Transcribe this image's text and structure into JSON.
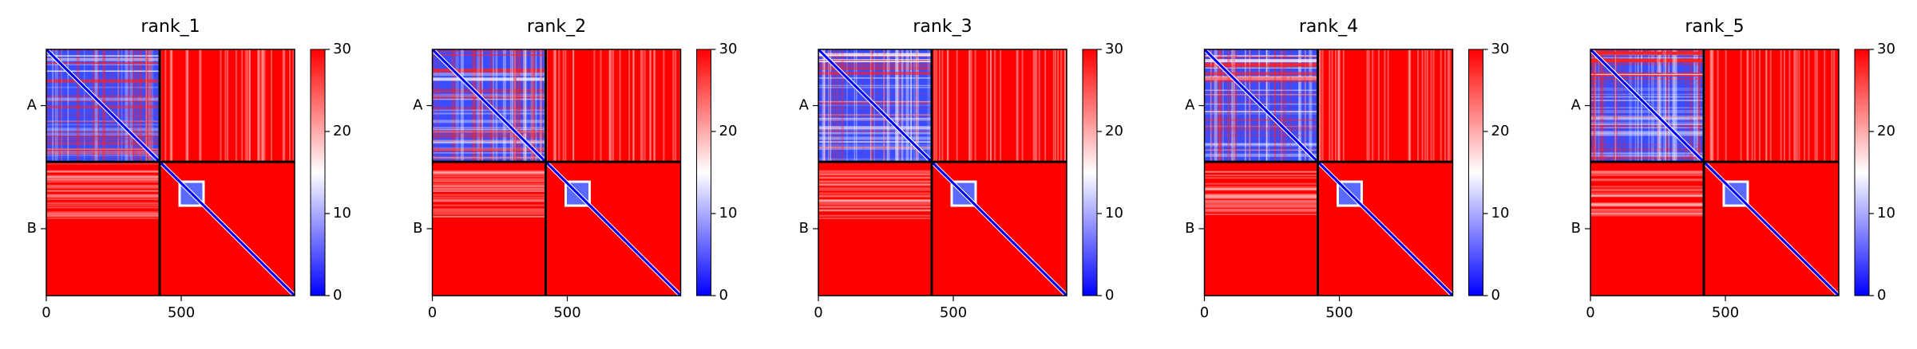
{
  "chart_data": [
    {
      "type": "heatmap",
      "title": "rank_1",
      "categories": [
        "A",
        "B"
      ],
      "chain_boundary": 420,
      "xlim": [
        0,
        920
      ],
      "xticks": [
        0,
        500
      ],
      "ylim": [
        920,
        0
      ],
      "clim": [
        0,
        30
      ],
      "cticks": [
        0,
        10,
        20,
        30
      ],
      "colors": [
        "#0000ff",
        "#ffffff",
        "#ff0000"
      ]
    },
    {
      "type": "heatmap",
      "title": "rank_2",
      "categories": [
        "A",
        "B"
      ],
      "chain_boundary": 420,
      "xlim": [
        0,
        920
      ],
      "xticks": [
        0,
        500
      ],
      "ylim": [
        920,
        0
      ],
      "clim": [
        0,
        30
      ],
      "cticks": [
        0,
        10,
        20,
        30
      ],
      "colors": [
        "#0000ff",
        "#ffffff",
        "#ff0000"
      ]
    },
    {
      "type": "heatmap",
      "title": "rank_3",
      "categories": [
        "A",
        "B"
      ],
      "chain_boundary": 420,
      "xlim": [
        0,
        920
      ],
      "xticks": [
        0,
        500
      ],
      "ylim": [
        920,
        0
      ],
      "clim": [
        0,
        30
      ],
      "cticks": [
        0,
        10,
        20,
        30
      ],
      "colors": [
        "#0000ff",
        "#ffffff",
        "#ff0000"
      ]
    },
    {
      "type": "heatmap",
      "title": "rank_4",
      "categories": [
        "A",
        "B"
      ],
      "chain_boundary": 420,
      "xlim": [
        0,
        920
      ],
      "xticks": [
        0,
        500
      ],
      "ylim": [
        920,
        0
      ],
      "clim": [
        0,
        30
      ],
      "cticks": [
        0,
        10,
        20,
        30
      ],
      "colors": [
        "#0000ff",
        "#ffffff",
        "#ff0000"
      ]
    },
    {
      "type": "heatmap",
      "title": "rank_5",
      "categories": [
        "A",
        "B"
      ],
      "chain_boundary": 420,
      "xlim": [
        0,
        920
      ],
      "xticks": [
        0,
        500
      ],
      "ylim": [
        920,
        0
      ],
      "clim": [
        0,
        30
      ],
      "cticks": [
        0,
        10,
        20,
        30
      ],
      "colors": [
        "#0000ff",
        "#ffffff",
        "#ff0000"
      ]
    }
  ]
}
